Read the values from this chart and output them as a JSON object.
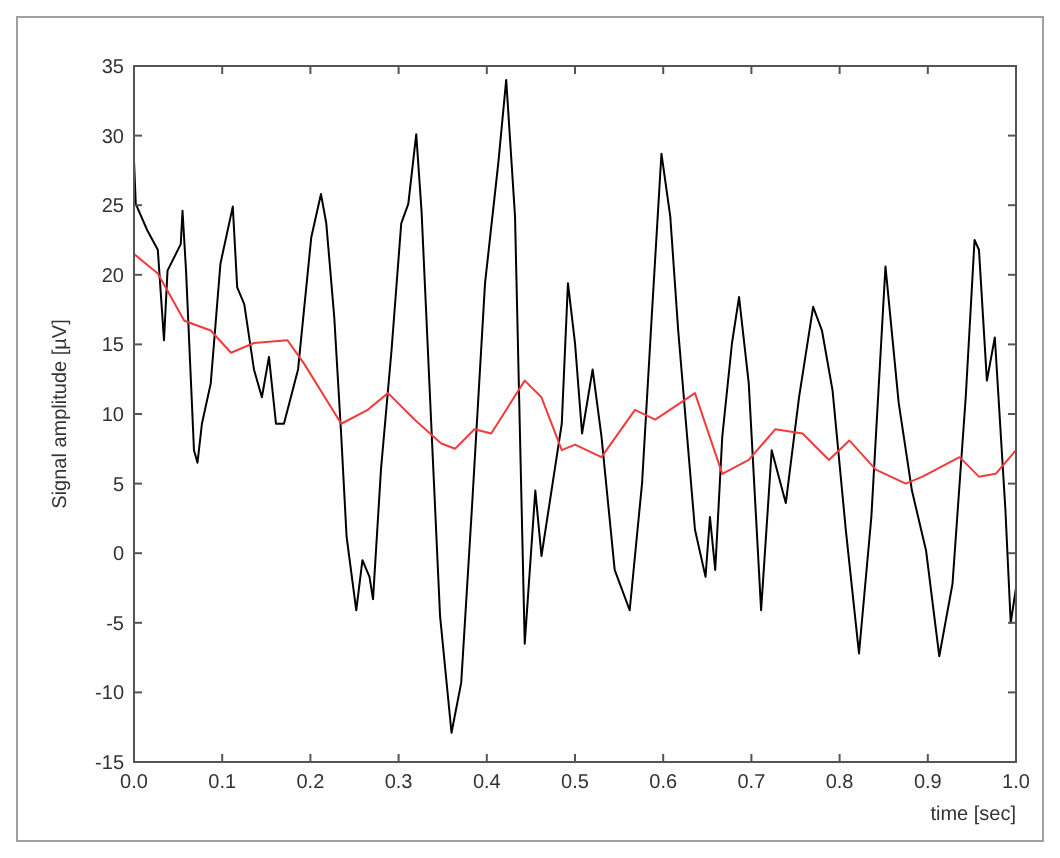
{
  "chart_data": {
    "type": "line",
    "xlabel": "time [sec]",
    "ylabel": "Signal amplitude [µV]",
    "xlim": [
      0,
      1
    ],
    "ylim": [
      -15,
      35
    ],
    "xticks": [
      {
        "value": 0,
        "label": "0.0"
      },
      0.1,
      0.2,
      0.3,
      0.4,
      0.5,
      0.6,
      0.7,
      0.8,
      0.9,
      {
        "value": 1,
        "label": "1.0"
      }
    ],
    "yticks": [
      -15,
      -10,
      -5,
      0,
      5,
      10,
      15,
      20,
      25,
      30,
      35
    ],
    "grid": false,
    "marker": "none",
    "line_style": "solid",
    "series": [
      {
        "color": "#000000",
        "x": [
          0,
          0.002,
          0.015,
          0.027,
          0.034,
          0.038,
          0.053,
          0.055,
          0.059,
          0.068,
          0.072,
          0.077,
          0.087,
          0.098,
          0.112,
          0.117,
          0.125,
          0.136,
          0.145,
          0.153,
          0.161,
          0.17,
          0.186,
          0.201,
          0.212,
          0.218,
          0.227,
          0.235,
          0.241,
          0.252,
          0.259,
          0.267,
          0.271,
          0.28,
          0.292,
          0.303,
          0.311,
          0.32,
          0.326,
          0.337,
          0.347,
          0.36,
          0.371,
          0.383,
          0.398,
          0.413,
          0.422,
          0.432,
          0.443,
          0.455,
          0.462,
          0.477,
          0.485,
          0.492,
          0.5,
          0.508,
          0.52,
          0.53,
          0.545,
          0.562,
          0.576,
          0.587,
          0.598,
          0.608,
          0.617,
          0.636,
          0.648,
          0.653,
          0.659,
          0.667,
          0.678,
          0.686,
          0.697,
          0.711,
          0.723,
          0.739,
          0.754,
          0.77,
          0.78,
          0.792,
          0.807,
          0.822,
          0.836,
          0.852,
          0.867,
          0.882,
          0.898,
          0.913,
          0.928,
          0.943,
          0.953,
          0.958,
          0.967,
          0.976,
          0.988,
          0.994,
          1
        ],
        "values": [
          28.2,
          25.1,
          23.2,
          21.8,
          15.3,
          20.3,
          22.2,
          24.6,
          20.3,
          7.4,
          6.5,
          9.3,
          12.2,
          20.8,
          24.9,
          19.1,
          17.9,
          13.2,
          11.2,
          14.1,
          9.3,
          9.3,
          13.2,
          22.7,
          25.8,
          23.7,
          17,
          8.4,
          1.2,
          -4.1,
          -0.5,
          -1.7,
          -3.3,
          6,
          14.6,
          23.7,
          25.1,
          30.1,
          24.6,
          9.3,
          -4.5,
          -12.9,
          -9.3,
          3.1,
          19.4,
          28,
          34,
          24.2,
          -6.5,
          4.5,
          -0.2,
          6,
          9.3,
          19.4,
          15.1,
          8.6,
          13.2,
          8.4,
          -1.2,
          -4.1,
          5,
          17,
          28.7,
          24.2,
          16,
          1.7,
          -1.7,
          2.6,
          -1.2,
          8.4,
          15.1,
          18.4,
          12.2,
          -4.1,
          7.4,
          3.6,
          11.2,
          17.7,
          16,
          11.7,
          1.7,
          -7.2,
          2.6,
          20.6,
          10.8,
          4.5,
          0.2,
          -7.4,
          -2.2,
          11.2,
          22.5,
          21.8,
          12.4,
          15.5,
          3.1,
          -5,
          -2.5
        ]
      },
      {
        "color": "#f03c3c",
        "x": [
          0,
          0.027,
          0.057,
          0.087,
          0.11,
          0.136,
          0.174,
          0.193,
          0.235,
          0.265,
          0.288,
          0.318,
          0.348,
          0.364,
          0.386,
          0.405,
          0.443,
          0.462,
          0.485,
          0.5,
          0.53,
          0.568,
          0.591,
          0.636,
          0.667,
          0.697,
          0.727,
          0.758,
          0.788,
          0.811,
          0.841,
          0.875,
          0.894,
          0.936,
          0.958,
          0.977,
          1
        ],
        "values": [
          21.5,
          20.1,
          16.7,
          16,
          14.4,
          15.1,
          15.3,
          13.6,
          9.3,
          10.3,
          11.5,
          9.6,
          7.9,
          7.5,
          8.9,
          8.6,
          12.4,
          11.2,
          7.4,
          7.8,
          6.9,
          10.3,
          9.6,
          11.5,
          5.7,
          6.7,
          8.9,
          8.6,
          6.7,
          8.1,
          6,
          5,
          5.5,
          6.9,
          5.5,
          5.7,
          7.4
        ]
      }
    ]
  }
}
